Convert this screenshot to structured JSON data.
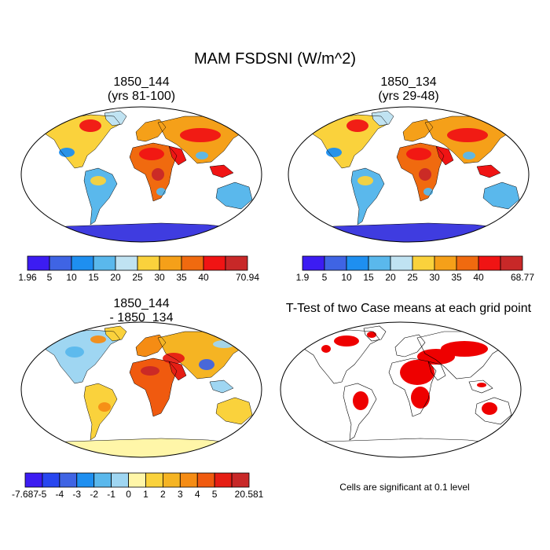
{
  "title": "MAM FSDSNI (W/m^2)",
  "panels": [
    {
      "id": "case1",
      "title_lines": [
        "1850_144",
        "(yrs 81-100)"
      ],
      "colorbar": {
        "labels": [
          "1.96",
          "5",
          "10",
          "15",
          "20",
          "25",
          "30",
          "35",
          "40",
          "70.94"
        ],
        "colors": [
          "#3c1cf2",
          "#3f64e4",
          "#1e8ff0",
          "#5ab8ec",
          "#c0e3f2",
          "#fad23c",
          "#f5a019",
          "#f06a0f",
          "#f01414",
          "#c82828"
        ]
      }
    },
    {
      "id": "case2",
      "title_lines": [
        "1850_134",
        "(yrs 29-48)"
      ],
      "colorbar": {
        "labels": [
          "1.9",
          "5",
          "10",
          "15",
          "20",
          "25",
          "30",
          "35",
          "40",
          "68.77"
        ],
        "colors": [
          "#3c1cf2",
          "#3f64e4",
          "#1e8ff0",
          "#5ab8ec",
          "#c0e3f2",
          "#fad23c",
          "#f5a019",
          "#f06a0f",
          "#f01414",
          "#c82828"
        ]
      }
    },
    {
      "id": "diff",
      "title_lines": [
        "1850_144",
        "- 1850_134"
      ],
      "colorbar": {
        "labels": [
          "-7.687",
          "-5",
          "-4",
          "-3",
          "-2",
          "-1",
          "0",
          "1",
          "2",
          "3",
          "4",
          "5",
          "20.581"
        ],
        "colors": [
          "#3c1cf2",
          "#2846f0",
          "#3f64e4",
          "#1e8ff0",
          "#5ab8ec",
          "#9fd6f2",
          "#fff6a8",
          "#fad23c",
          "#f5b423",
          "#f58c14",
          "#f05a0f",
          "#e61e14",
          "#c82828"
        ]
      }
    },
    {
      "id": "ttest",
      "title_lines": [
        "T-Test of two Case means at each grid point"
      ],
      "note": "Cells are significant at 0.1 level",
      "significant_color": "#ee0000"
    }
  ]
}
